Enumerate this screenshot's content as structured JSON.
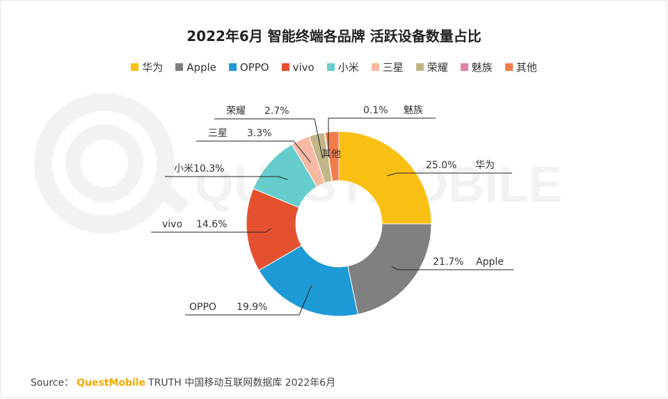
{
  "title": "2022年6月 智能终端各品牌 活跃设备数量占比",
  "watermark": "QUESTMOBILE",
  "source": {
    "prefix": "Source：",
    "brand": "QuestMobile",
    "rest": "TRUTH 中国移动互联网数据库 2022年6月"
  },
  "chart_data": {
    "type": "pie",
    "variant": "donut",
    "unit": "%",
    "legend_position": "top",
    "series": [
      {
        "name": "华为",
        "value": 25.0,
        "color": "#f9bf13",
        "label": "25.0%"
      },
      {
        "name": "Apple",
        "value": 21.7,
        "color": "#808080",
        "label": "21.7%"
      },
      {
        "name": "OPPO",
        "value": 19.9,
        "color": "#1e9ad6",
        "label": "19.9%"
      },
      {
        "name": "vivo",
        "value": 14.6,
        "color": "#e5512f",
        "label": "14.6%"
      },
      {
        "name": "小米",
        "value": 10.3,
        "color": "#66cccc",
        "label": "10.3%"
      },
      {
        "name": "三星",
        "value": 3.3,
        "color": "#f7b9a3",
        "label": "3.3%"
      },
      {
        "name": "荣耀",
        "value": 2.7,
        "color": "#c2b689",
        "label": "2.7%"
      },
      {
        "name": "魅族",
        "value": 0.1,
        "color": "#e27fa8",
        "label": "0.1%"
      },
      {
        "name": "其他",
        "value": 2.4,
        "color": "#f47c4c",
        "label": ""
      }
    ]
  }
}
